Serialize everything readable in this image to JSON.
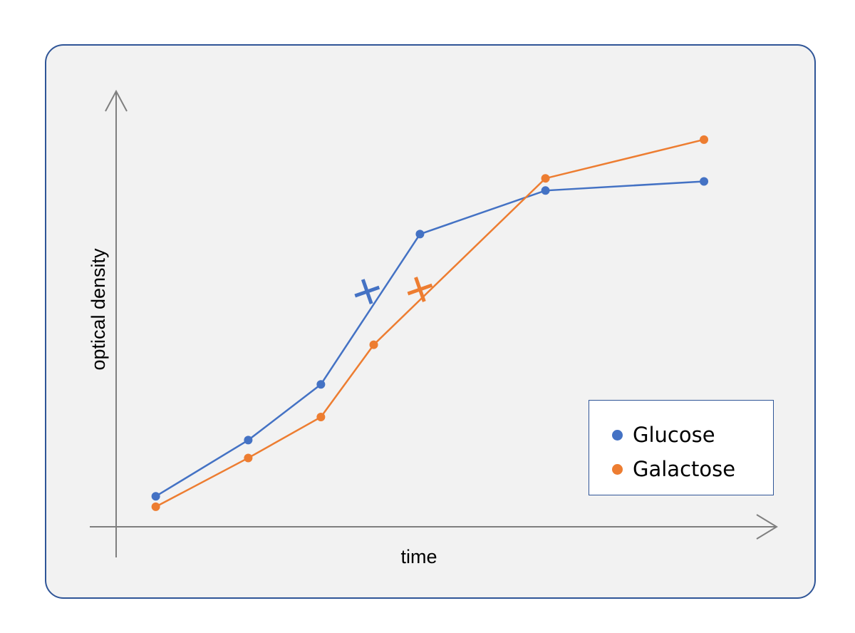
{
  "chart_data": {
    "type": "line",
    "title": "",
    "xlabel": "time",
    "ylabel": "optical density",
    "xlim": [
      0,
      10
    ],
    "ylim": [
      0,
      10
    ],
    "grid": false,
    "axis_ticks": false,
    "legend_position": "bottom-right",
    "series": [
      {
        "name": "Glucose",
        "color": "#4472c4",
        "points": [
          [
            0.6,
            0.7
          ],
          [
            2.0,
            1.99
          ],
          [
            3.1,
            3.27
          ],
          [
            4.6,
            6.72
          ],
          [
            6.5,
            7.72
          ],
          [
            8.9,
            7.93
          ]
        ],
        "marker": {
          "x": 3.8,
          "y": 5.4,
          "symbol": "cross"
        }
      },
      {
        "name": "Galactose",
        "color": "#ed7d31",
        "points": [
          [
            0.6,
            0.46
          ],
          [
            2.0,
            1.58
          ],
          [
            3.1,
            2.52
          ],
          [
            3.9,
            4.18
          ],
          [
            6.5,
            8.0
          ],
          [
            8.9,
            8.89
          ]
        ],
        "marker": {
          "x": 4.6,
          "y": 5.45,
          "symbol": "cross"
        }
      }
    ]
  }
}
